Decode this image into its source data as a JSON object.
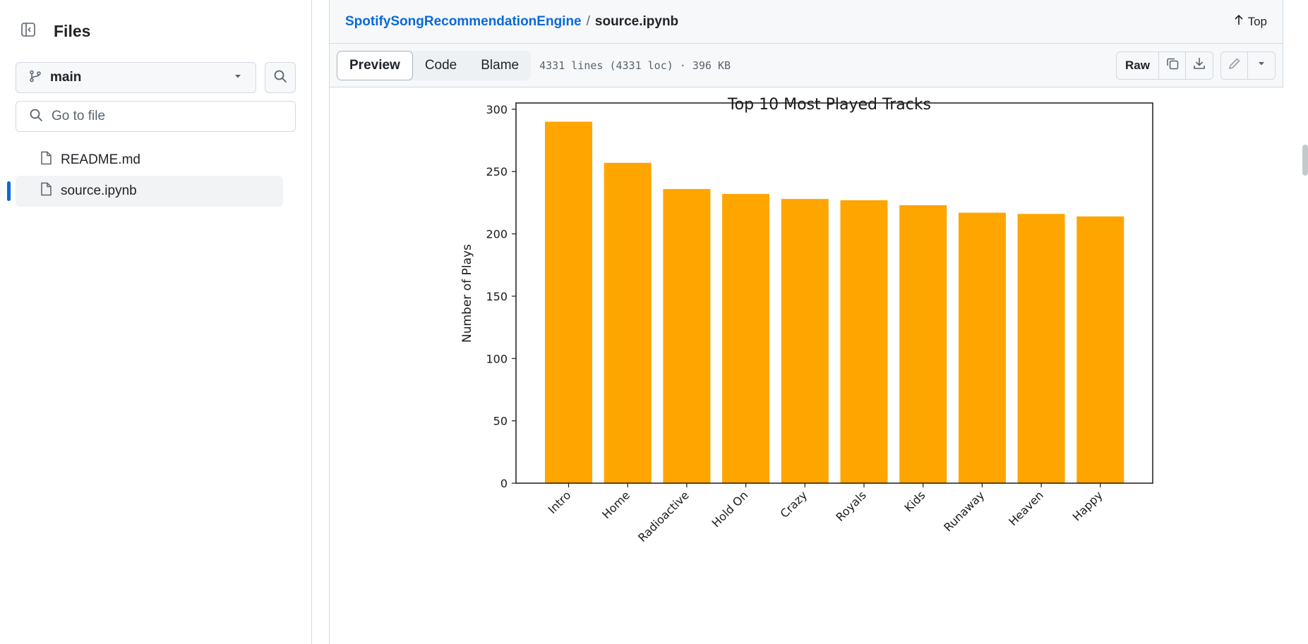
{
  "sidebar": {
    "title": "Files",
    "branch": "main",
    "goto_placeholder": "Go to file",
    "files": [
      {
        "name": "README.md",
        "active": false
      },
      {
        "name": "source.ipynb",
        "active": true
      }
    ]
  },
  "header": {
    "repo": "SpotifySongRecommendationEngine",
    "separator": "/",
    "file": "source.ipynb",
    "top_label": "Top"
  },
  "toolbar": {
    "tabs": [
      "Preview",
      "Code",
      "Blame"
    ],
    "selected_tab": "Preview",
    "file_info": "4331 lines (4331 loc) · 396 KB",
    "raw_label": "Raw"
  },
  "chart_data": {
    "type": "bar",
    "title": "Top 10 Most Played Tracks",
    "ylabel": "Number of Plays",
    "xlabel": "",
    "categories": [
      "Intro",
      "Home",
      "Radioactive",
      "Hold On",
      "Crazy",
      "Royals",
      "Kids",
      "Runaway",
      "Heaven",
      "Happy"
    ],
    "values": [
      290,
      257,
      236,
      232,
      228,
      227,
      223,
      217,
      216,
      214
    ],
    "ylim": [
      0,
      305
    ],
    "yticks": [
      0,
      50,
      100,
      150,
      200,
      250,
      300
    ],
    "bar_color": "#ffa500",
    "grid": false
  },
  "colors": {
    "accent": "#0969da",
    "border": "#d1d9e0",
    "muted": "#59636e"
  }
}
